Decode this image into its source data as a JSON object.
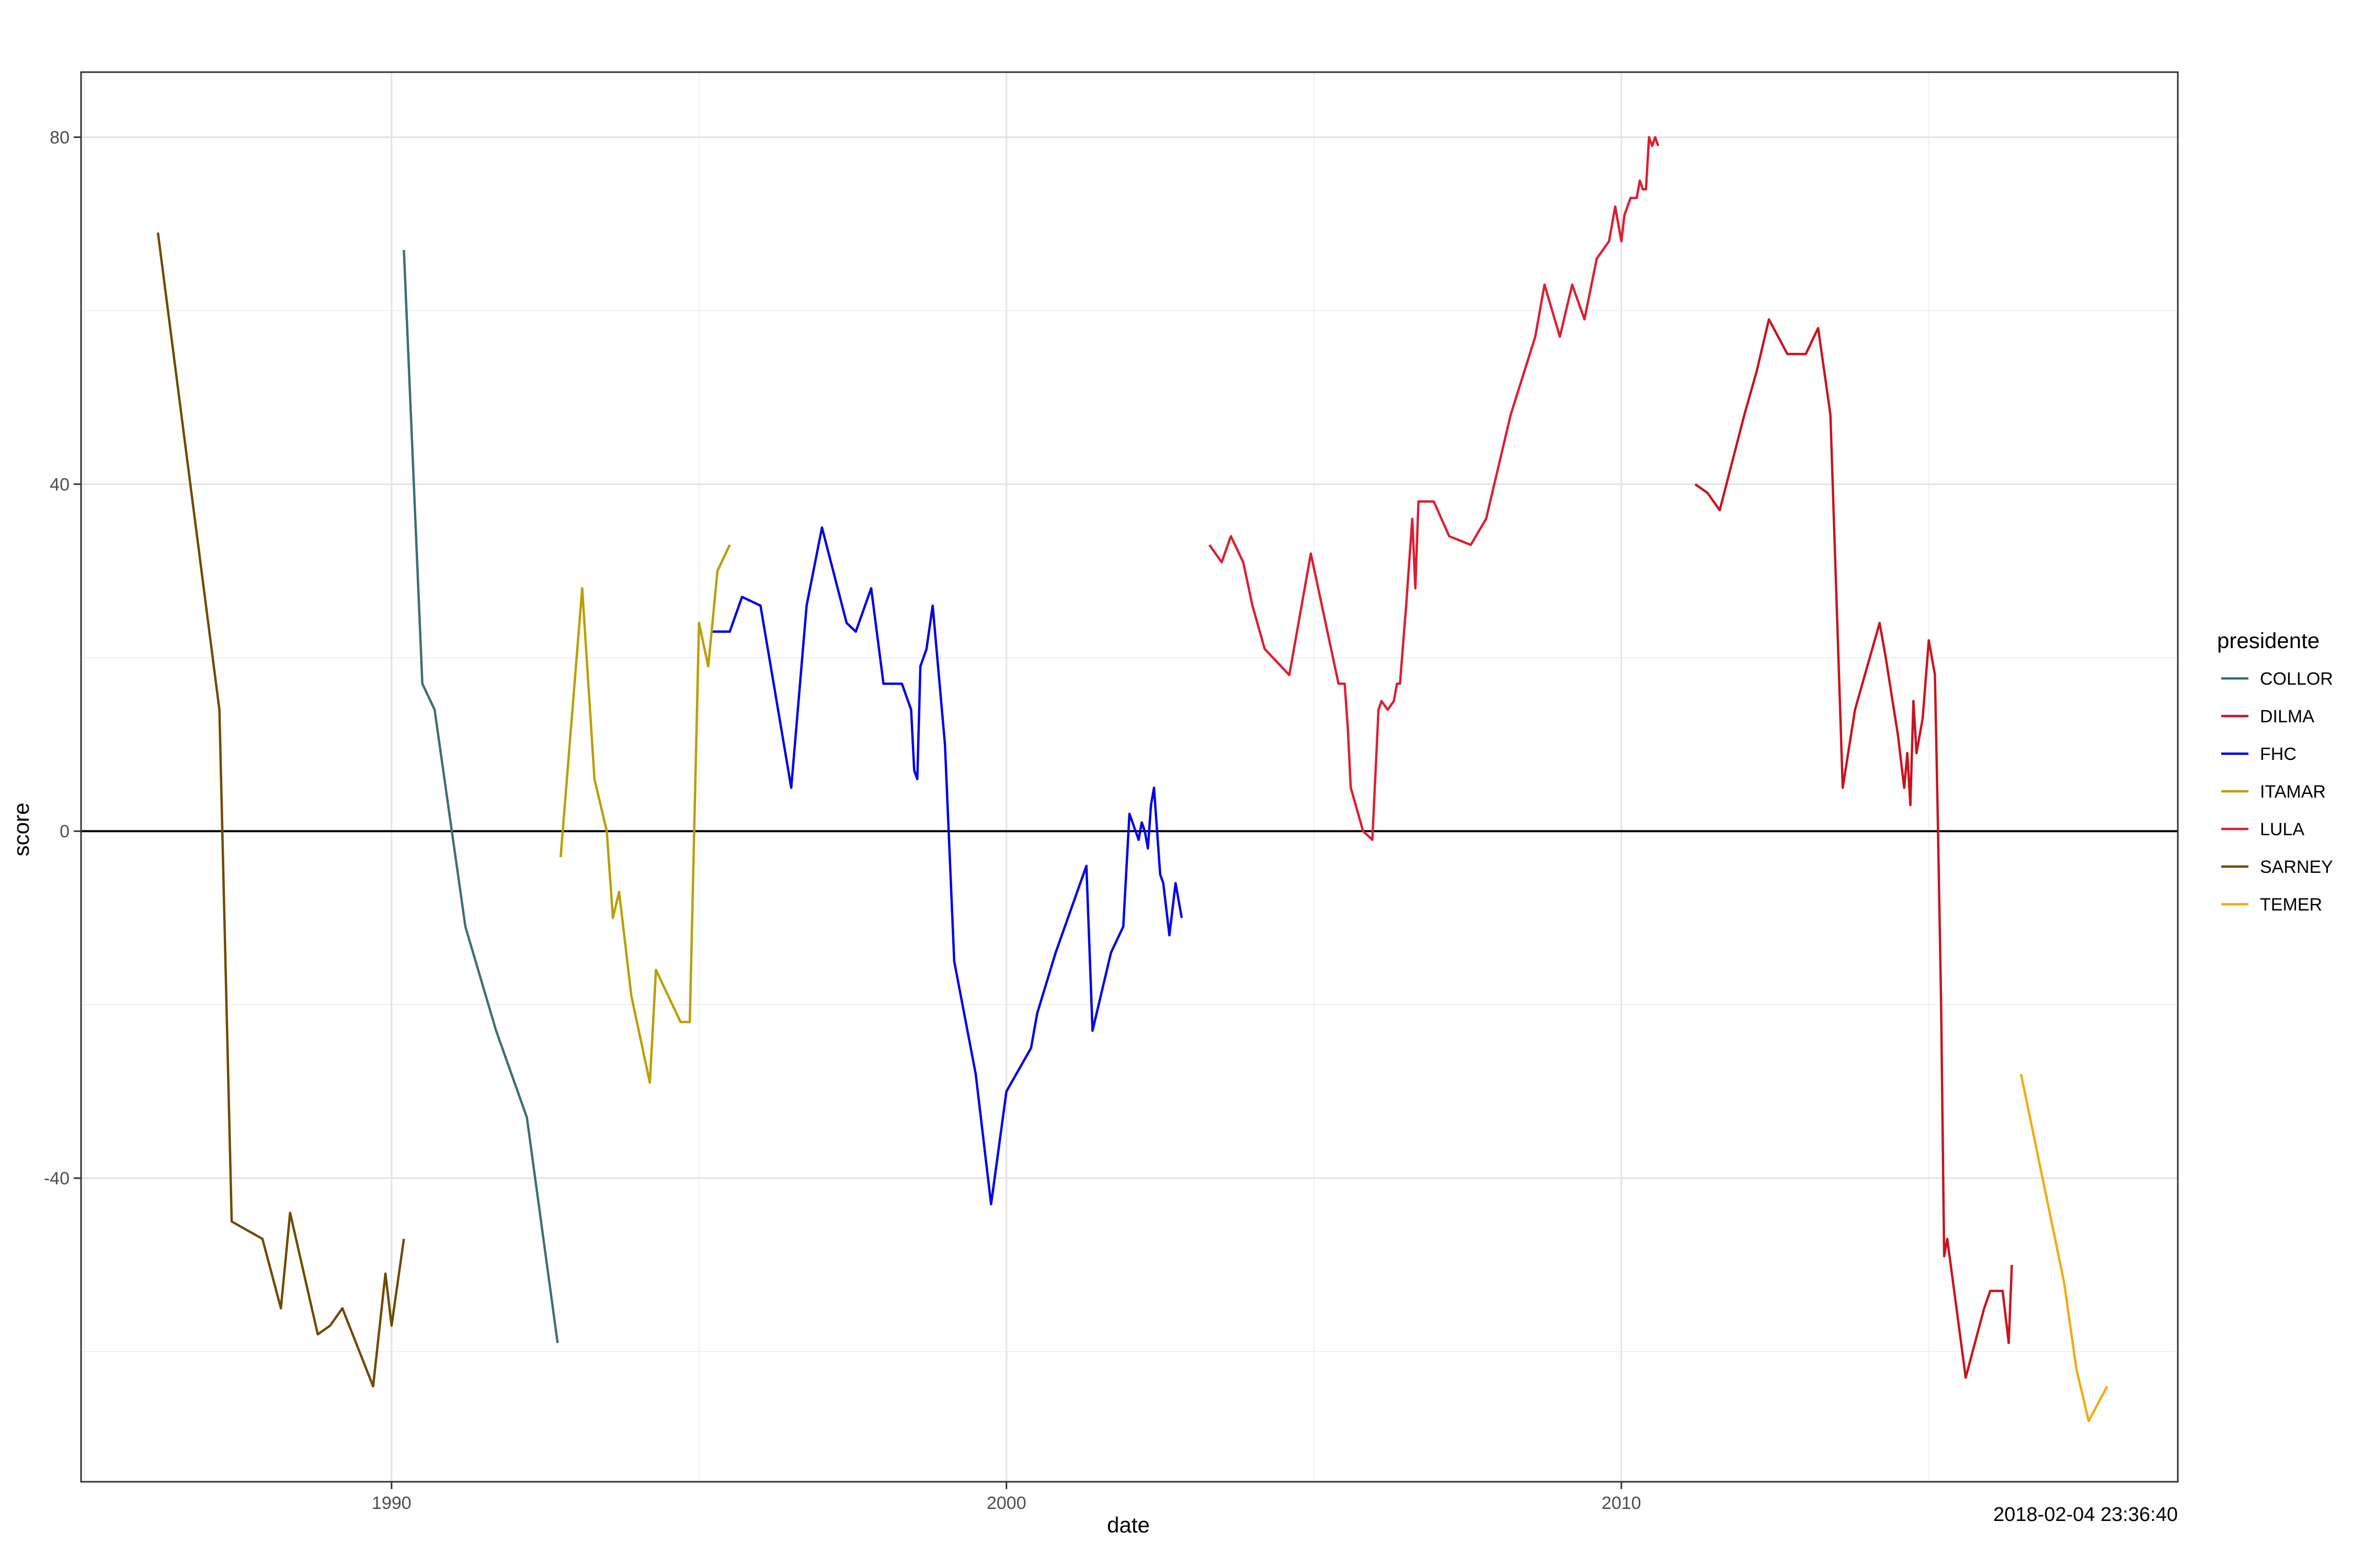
{
  "chart_data": {
    "type": "line",
    "title": "",
    "xlabel": "date",
    "ylabel": "score",
    "caption": "2018-02-04 23:36:40",
    "legend_title": "presidente",
    "legend_position": "right",
    "grid": true,
    "reference_line_y": 0,
    "xlim": [
      1984.95,
      2019.05
    ],
    "ylim": [
      -75,
      87.5
    ],
    "x_ticks": [
      1990,
      2000,
      2010
    ],
    "y_ticks": [
      -40,
      0,
      40,
      80
    ],
    "series": [
      {
        "name": "COLLOR",
        "color": "#3F6E71",
        "x": [
          1990.2,
          1990.5,
          1990.7,
          1991.2,
          1991.7,
          1992.2,
          1992.7
        ],
        "y": [
          67,
          17,
          14,
          -11,
          -23,
          -33,
          -59
        ]
      },
      {
        "name": "DILMA",
        "color": "#C8141E",
        "x": [
          2011.2,
          2011.4,
          2011.6,
          2012.0,
          2012.2,
          2012.4,
          2012.7,
          2013.0,
          2013.2,
          2013.4,
          2013.6,
          2013.8,
          2014.0,
          2014.2,
          2014.3,
          2014.5,
          2014.55,
          2014.6,
          2014.65,
          2014.7,
          2014.75,
          2014.8,
          2014.9,
          2015.0,
          2015.1,
          2015.15,
          2015.2,
          2015.25,
          2015.3,
          2015.45,
          2015.6,
          2015.9,
          2016.0,
          2016.2,
          2016.3,
          2016.35
        ],
        "y": [
          40,
          39,
          37,
          48,
          53,
          59,
          55,
          55,
          58,
          48,
          5,
          14,
          19,
          24,
          20,
          11,
          8,
          5,
          9,
          3,
          15,
          9,
          13,
          22,
          18,
          0,
          -20,
          -49,
          -47,
          -55,
          -63,
          -55,
          -53,
          -53,
          -59,
          -50
        ]
      },
      {
        "name": "FHC",
        "color": "#0000E6",
        "x": [
          1995.2,
          1995.5,
          1995.7,
          1996.0,
          1996.5,
          1996.75,
          1997.0,
          1997.4,
          1997.55,
          1997.8,
          1998.0,
          1998.3,
          1998.45,
          1998.5,
          1998.55,
          1998.6,
          1998.7,
          1998.8,
          1999.0,
          1999.15,
          1999.5,
          1999.75,
          2000.0,
          2000.4,
          2000.5,
          2000.8,
          2001.3,
          2001.4,
          2001.7,
          2001.9,
          2002.0,
          2002.15,
          2002.2,
          2002.25,
          2002.3,
          2002.35,
          2002.4,
          2002.5,
          2002.55,
          2002.65,
          2002.75,
          2002.85
        ],
        "y": [
          23,
          23,
          27,
          26,
          5,
          26,
          35,
          24,
          23,
          28,
          17,
          17,
          14,
          7,
          6,
          19,
          21,
          26,
          10,
          -15,
          -28,
          -43,
          -30,
          -25,
          -21,
          -14,
          -4,
          -23,
          -14,
          -11,
          2,
          -1,
          1,
          0,
          -2,
          3,
          5,
          -5,
          -6,
          -12,
          -6,
          -10
        ]
      },
      {
        "name": "ITAMAR",
        "color": "#BB9E00",
        "x": [
          1992.75,
          1993.1,
          1993.3,
          1993.5,
          1993.6,
          1993.7,
          1993.9,
          1994.2,
          1994.3,
          1994.7,
          1994.85,
          1995.0,
          1995.15,
          1995.3,
          1995.5
        ],
        "y": [
          -3,
          28,
          6,
          0,
          -10,
          -7,
          -19,
          -29,
          -16,
          -22,
          -22,
          24,
          19,
          30,
          33
        ]
      },
      {
        "name": "LULA",
        "color": "#DC1E32",
        "x": [
          2003.3,
          2003.5,
          2003.65,
          2003.85,
          2004.0,
          2004.2,
          2004.6,
          2004.95,
          2005.4,
          2005.5,
          2005.55,
          2005.6,
          2005.8,
          2005.95,
          2006.05,
          2006.1,
          2006.2,
          2006.3,
          2006.35,
          2006.4,
          2006.5,
          2006.6,
          2006.65,
          2006.7,
          2006.8,
          2006.95,
          2007.2,
          2007.55,
          2007.8,
          2008.2,
          2008.6,
          2008.75,
          2009.0,
          2009.2,
          2009.4,
          2009.6,
          2009.8,
          2009.9,
          2010.0,
          2010.05,
          2010.15,
          2010.25,
          2010.3,
          2010.35,
          2010.4,
          2010.45,
          2010.5,
          2010.55,
          2010.6
        ],
        "y": [
          33,
          31,
          34,
          31,
          26,
          21,
          18,
          32,
          17,
          17,
          12,
          5,
          0,
          -1,
          14,
          15,
          14,
          15,
          17,
          17,
          26,
          36,
          28,
          38,
          38,
          38,
          34,
          33,
          36,
          48,
          57,
          63,
          57,
          63,
          59,
          66,
          68,
          72,
          68,
          71,
          73,
          73,
          75,
          74,
          74,
          80,
          79,
          80,
          79
        ]
      },
      {
        "name": "SARNEY",
        "color": "#6E4B00",
        "x": [
          1986.2,
          1987.2,
          1987.4,
          1987.9,
          1988.2,
          1988.35,
          1988.8,
          1989.0,
          1989.2,
          1989.7,
          1989.9,
          1990.0,
          1990.2
        ],
        "y": [
          69,
          14,
          -45,
          -47,
          -55,
          -44,
          -58,
          -57,
          -55,
          -64,
          -51,
          -57,
          -47
        ]
      },
      {
        "name": "TEMER",
        "color": "#F0AC14",
        "x": [
          2016.5,
          2017.2,
          2017.4,
          2017.6,
          2017.9
        ],
        "y": [
          -28,
          -52,
          -62,
          -68,
          -64
        ]
      }
    ]
  }
}
